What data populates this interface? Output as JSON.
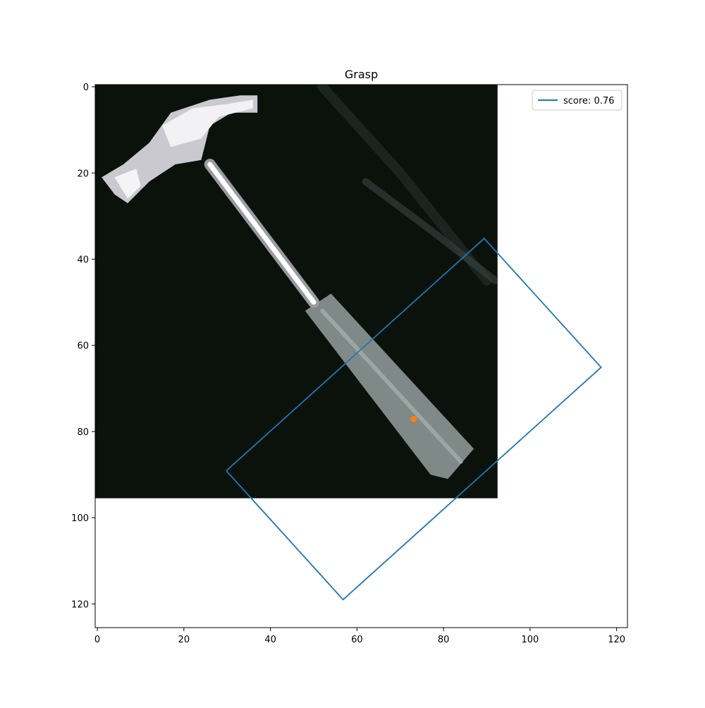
{
  "chart_data": {
    "type": "scatter",
    "title": "Grasp",
    "xlabel": "",
    "ylabel": "",
    "xlim": [
      -0.5,
      122.5
    ],
    "ylim": [
      125.5,
      -0.5
    ],
    "y_inverted": true,
    "x_ticks": [
      0,
      20,
      40,
      60,
      80,
      100,
      120
    ],
    "y_ticks": [
      0,
      20,
      40,
      60,
      80,
      100,
      120
    ],
    "x_tick_labels": [
      "0",
      "20",
      "40",
      "60",
      "80",
      "100",
      "120"
    ],
    "y_tick_labels": [
      "0",
      "20",
      "40",
      "60",
      "80",
      "100",
      "120"
    ],
    "grid": false,
    "legend_position": "top-right",
    "image_extent": {
      "x": [
        -0.5,
        92.5
      ],
      "y": [
        -0.5,
        95.5
      ]
    },
    "image_content": "hammer on dark background",
    "series": [
      {
        "name": "score: 0.76",
        "kind": "line",
        "color": "#1f77b4",
        "x": [
          29.8,
          89.4,
          116.4,
          56.8,
          29.8
        ],
        "y": [
          89.1,
          35.2,
          65.1,
          119.0,
          89.1
        ]
      },
      {
        "kind": "point",
        "color": "#ff7f0e",
        "x": [
          73.1
        ],
        "y": [
          77.1
        ]
      }
    ]
  },
  "colors": {
    "axes": "#000000",
    "background": "#ffffff",
    "image_bg": "#0b120c",
    "hammer_metal": "#e8e8ea",
    "hammer_handle": "#7c8684"
  }
}
